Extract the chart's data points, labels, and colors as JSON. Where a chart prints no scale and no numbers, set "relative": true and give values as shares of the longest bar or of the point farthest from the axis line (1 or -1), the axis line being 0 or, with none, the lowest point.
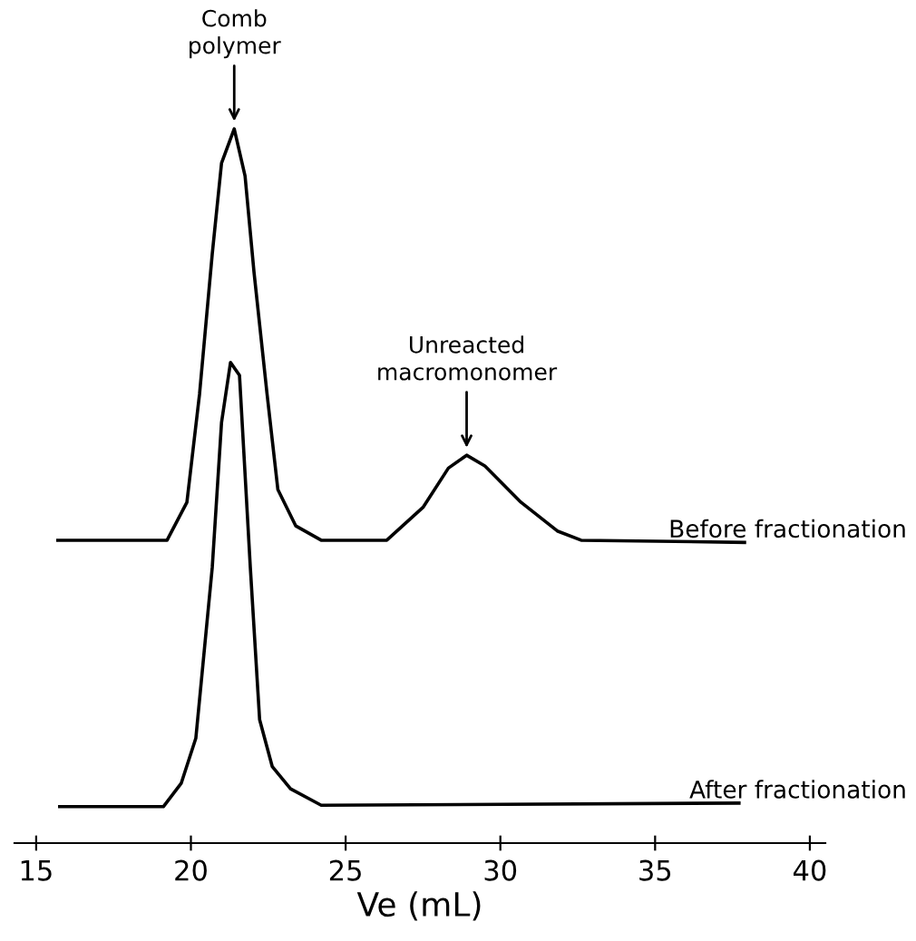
{
  "chart_data": {
    "type": "line",
    "xlabel": "Ve (mL)",
    "relative": true,
    "xlim": [
      14.3,
      40.5
    ],
    "xticks": [
      15,
      20,
      25,
      30,
      35,
      40
    ],
    "grid": false,
    "legend": false,
    "marker": "none",
    "line_style": "solid",
    "series": [
      {
        "name": "Before fractionation",
        "color": "#000000",
        "x": [
          15.7,
          19.23,
          19.87,
          20.28,
          20.69,
          20.99,
          21.4,
          21.75,
          22.04,
          22.46,
          22.81,
          23.39,
          24.21,
          26.33,
          27.5,
          28.32,
          28.91,
          29.5,
          30.67,
          31.84,
          32.61,
          37.89
        ],
        "values": [
          0.424,
          0.424,
          0.477,
          0.629,
          0.825,
          0.952,
          1.0,
          0.934,
          0.799,
          0.629,
          0.495,
          0.444,
          0.424,
          0.424,
          0.47,
          0.525,
          0.543,
          0.528,
          0.477,
          0.437,
          0.424,
          0.421
        ]
      },
      {
        "name": "After fractionation",
        "color": "#000000",
        "x": [
          15.76,
          19.11,
          19.69,
          20.16,
          20.69,
          20.99,
          21.28,
          21.57,
          21.92,
          22.22,
          22.63,
          23.22,
          24.21,
          37.71
        ],
        "values": [
          0.051,
          0.051,
          0.084,
          0.147,
          0.386,
          0.589,
          0.673,
          0.655,
          0.386,
          0.173,
          0.107,
          0.076,
          0.053,
          0.056
        ]
      }
    ],
    "annotations": [
      {
        "text": "Comb\npolymer",
        "x": 21.4,
        "y": 1.0
      },
      {
        "text": "Unreacted\nmacromonomer",
        "x": 28.91,
        "y": 0.543
      }
    ]
  }
}
